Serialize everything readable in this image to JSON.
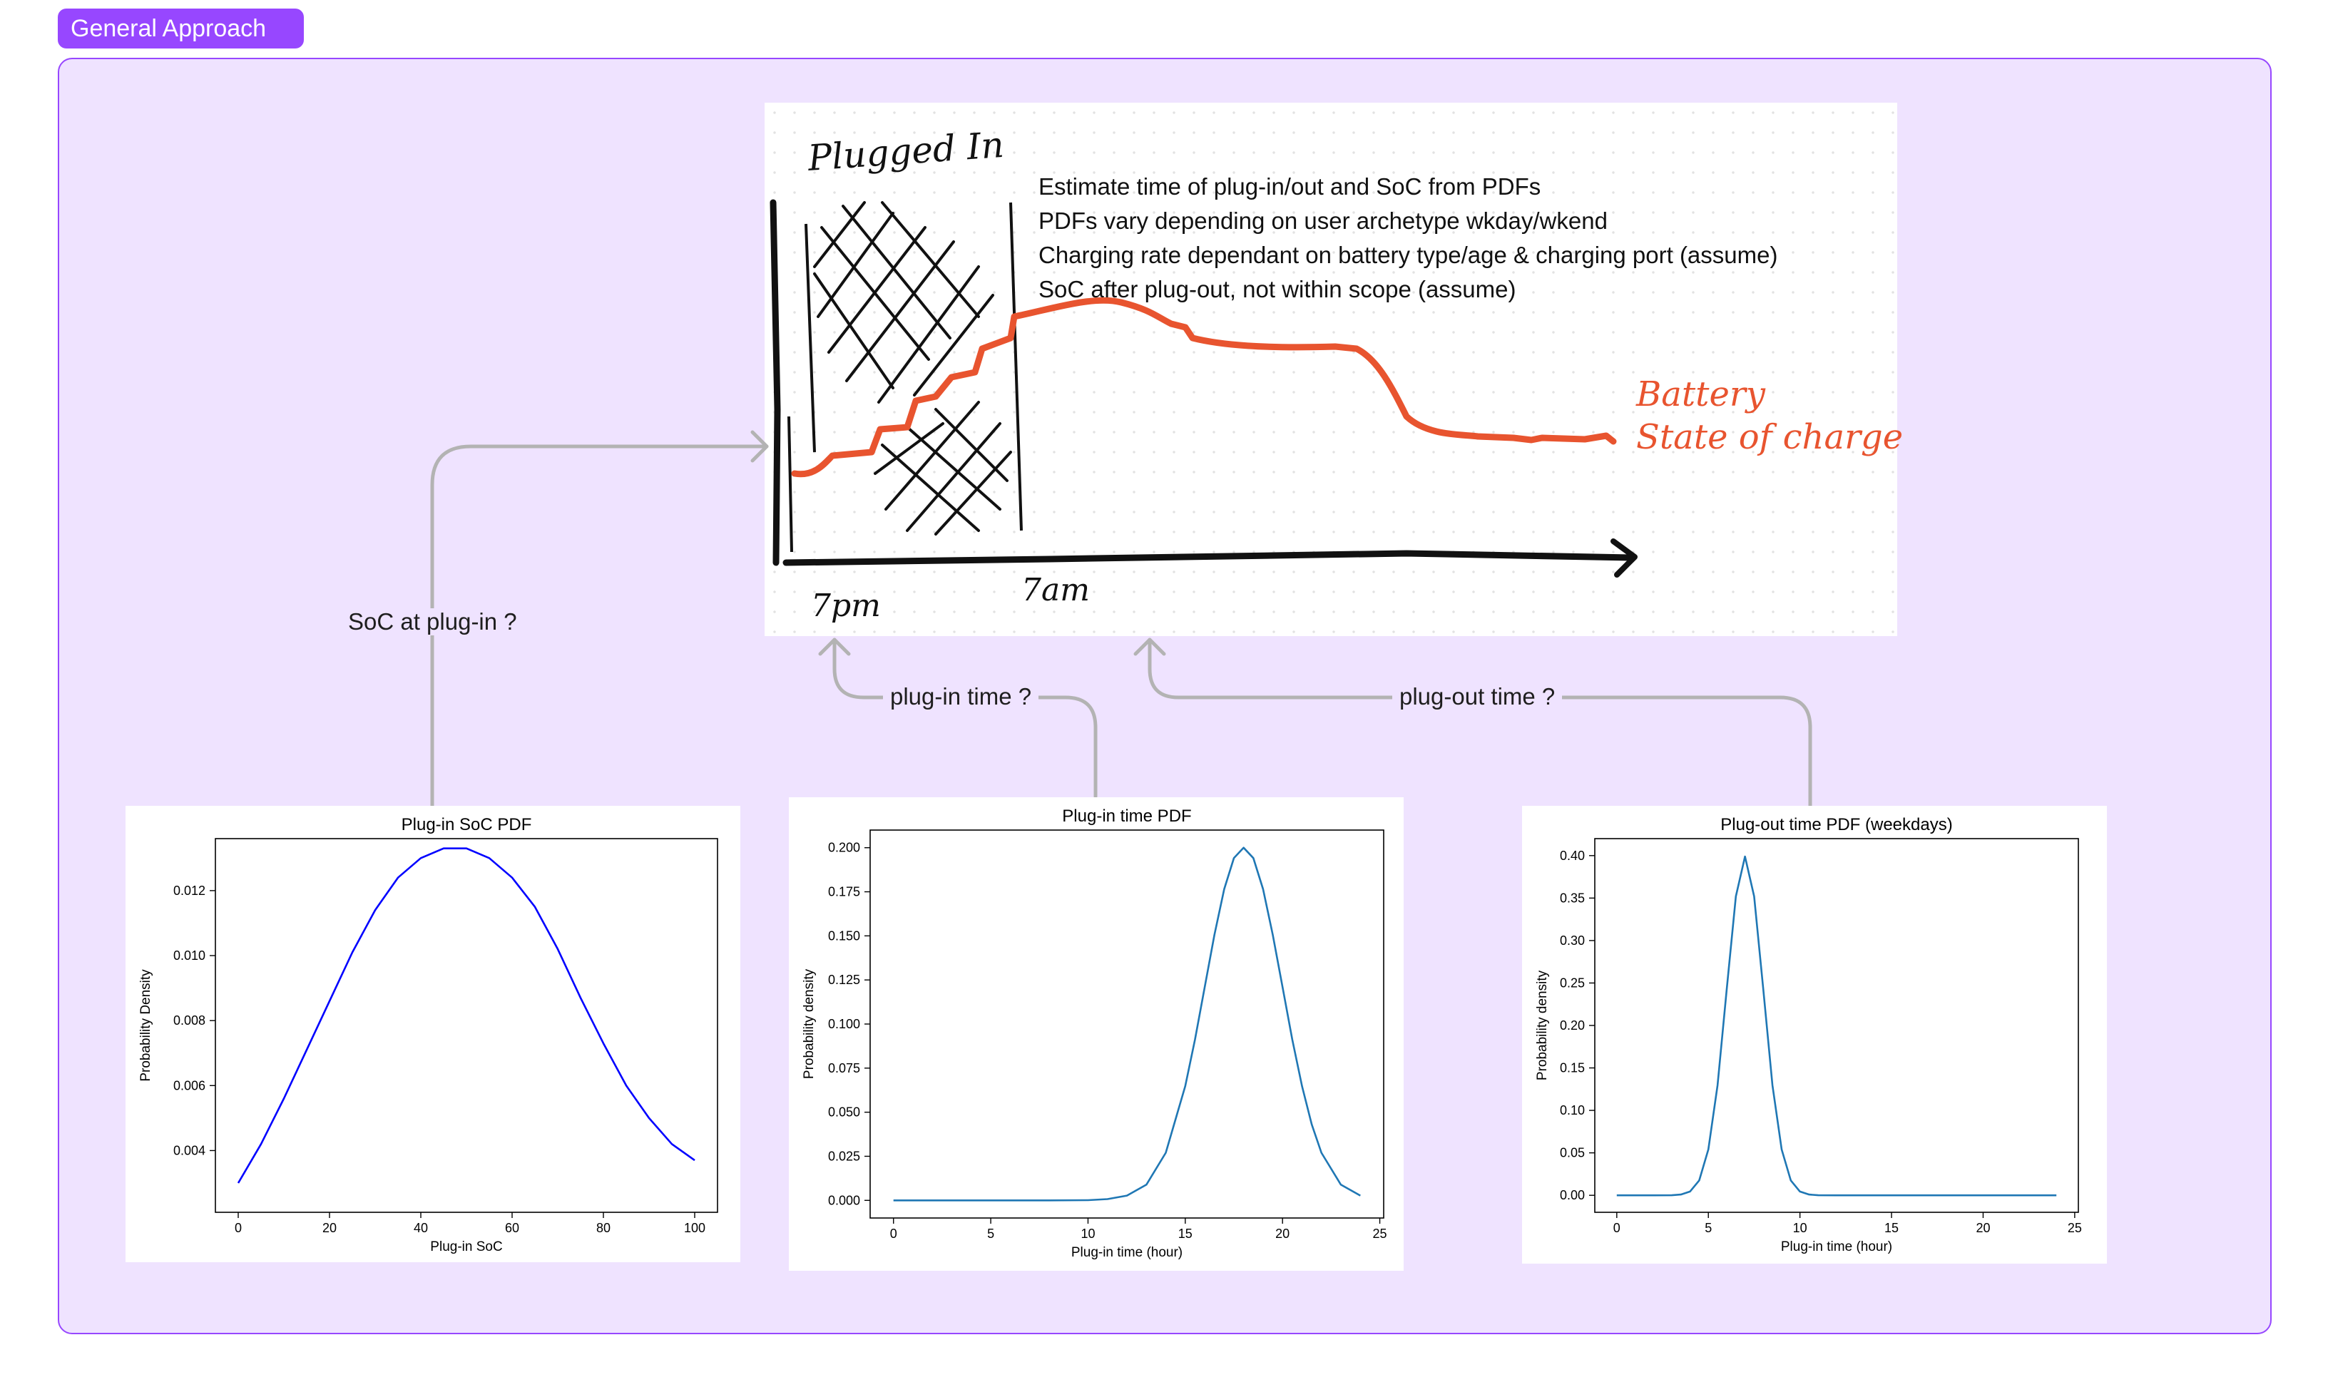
{
  "section": {
    "title": "General Approach"
  },
  "sketch": {
    "plugged_in_label": "Plugged In",
    "battery_label_line1": "Battery",
    "battery_label_line2": "State of charge",
    "x_tick_1": "7pm",
    "x_tick_2": "7am",
    "notes": [
      "Estimate time of plug-in/out and SoC from PDFs",
      "PDFs vary depending on user archetype wkday/wkend",
      "Charging rate dependant on battery type/age & charging port  (assume)",
      "SoC after plug-out, not within scope (assume)"
    ],
    "colors": {
      "soc_line": "#e8542f",
      "ink": "#111111"
    }
  },
  "connectors": {
    "soc_label": "SoC at plug-in ?",
    "plugin_label": "plug-in time ?",
    "plugout_label": "plug-out time ?"
  },
  "chart_data": [
    {
      "type": "line",
      "title": "Plug-in SoC PDF",
      "xlabel": "Plug-in SoC",
      "ylabel": "Probability Density",
      "xlim": [
        -5,
        105
      ],
      "ylim": [
        0.0021,
        0.0136
      ],
      "xticks": [
        0,
        20,
        40,
        60,
        80,
        100
      ],
      "yticks": [
        0.004,
        0.006,
        0.008,
        0.01,
        0.012
      ],
      "ytick_labels": [
        "0.004",
        "0.006",
        "0.008",
        "0.010",
        "0.012"
      ],
      "line_color": "#0000ff",
      "series": [
        {
          "x": [
            0,
            5,
            10,
            15,
            20,
            25,
            30,
            35,
            40,
            45,
            50,
            55,
            60,
            65,
            70,
            75,
            80,
            85,
            90,
            95,
            100
          ],
          "y": [
            0.003,
            0.0042,
            0.0056,
            0.0071,
            0.0086,
            0.0101,
            0.0114,
            0.0124,
            0.013,
            0.0133,
            0.0133,
            0.013,
            0.0124,
            0.0115,
            0.0102,
            0.0087,
            0.0073,
            0.006,
            0.005,
            0.0042,
            0.0037
          ]
        }
      ]
    },
    {
      "type": "line",
      "title": "Plug-in time PDF",
      "xlabel": "Plug-in time (hour)",
      "ylabel": "Probability density",
      "xlim": [
        -1.2,
        25.2
      ],
      "ylim": [
        -0.01,
        0.21
      ],
      "xticks": [
        0,
        5,
        10,
        15,
        20,
        25
      ],
      "yticks": [
        0.0,
        0.025,
        0.05,
        0.075,
        0.1,
        0.125,
        0.15,
        0.175,
        0.2
      ],
      "ytick_labels": [
        "0.000",
        "0.025",
        "0.050",
        "0.075",
        "0.100",
        "0.125",
        "0.150",
        "0.175",
        "0.200"
      ],
      "line_color": "#1f77b4",
      "series": [
        {
          "x": [
            0,
            2,
            4,
            6,
            8,
            10,
            11,
            12,
            13,
            14,
            15,
            15.5,
            16,
            16.5,
            17,
            17.5,
            18,
            18.5,
            19,
            19.5,
            20,
            20.5,
            21,
            21.5,
            22,
            23,
            24
          ],
          "y": [
            0,
            0,
            0,
            0,
            0,
            0.0001,
            0.0007,
            0.0027,
            0.0089,
            0.027,
            0.0648,
            0.0913,
            0.121,
            0.1506,
            0.1765,
            0.1941,
            0.2,
            0.1941,
            0.1765,
            0.1506,
            0.121,
            0.0913,
            0.0648,
            0.0431,
            0.027,
            0.0089,
            0.0027
          ]
        }
      ]
    },
    {
      "type": "line",
      "title": "Plug-out time PDF (weekdays)",
      "xlabel": "Plug-in time (hour)",
      "ylabel": "Probability density",
      "xlim": [
        -1.2,
        25.2
      ],
      "ylim": [
        -0.02,
        0.42
      ],
      "xticks": [
        0,
        5,
        10,
        15,
        20,
        25
      ],
      "yticks": [
        0.0,
        0.05,
        0.1,
        0.15,
        0.2,
        0.25,
        0.3,
        0.35,
        0.4
      ],
      "ytick_labels": [
        "0.00",
        "0.05",
        "0.10",
        "0.15",
        "0.20",
        "0.25",
        "0.30",
        "0.35",
        "0.40"
      ],
      "line_color": "#1f77b4",
      "series": [
        {
          "x": [
            0,
            1,
            2,
            3,
            3.5,
            4,
            4.5,
            5,
            5.5,
            6,
            6.5,
            7,
            7.5,
            8,
            8.5,
            9,
            9.5,
            10,
            10.5,
            11,
            12,
            14,
            16,
            18,
            20,
            22,
            24
          ],
          "y": [
            0,
            0,
            0,
            0.0001,
            0.0009,
            0.0044,
            0.0175,
            0.054,
            0.1295,
            0.242,
            0.3521,
            0.3989,
            0.3521,
            0.242,
            0.1295,
            0.054,
            0.0175,
            0.0044,
            0.0009,
            0.0001,
            0,
            0,
            0,
            0,
            0,
            0,
            0
          ]
        }
      ]
    }
  ]
}
